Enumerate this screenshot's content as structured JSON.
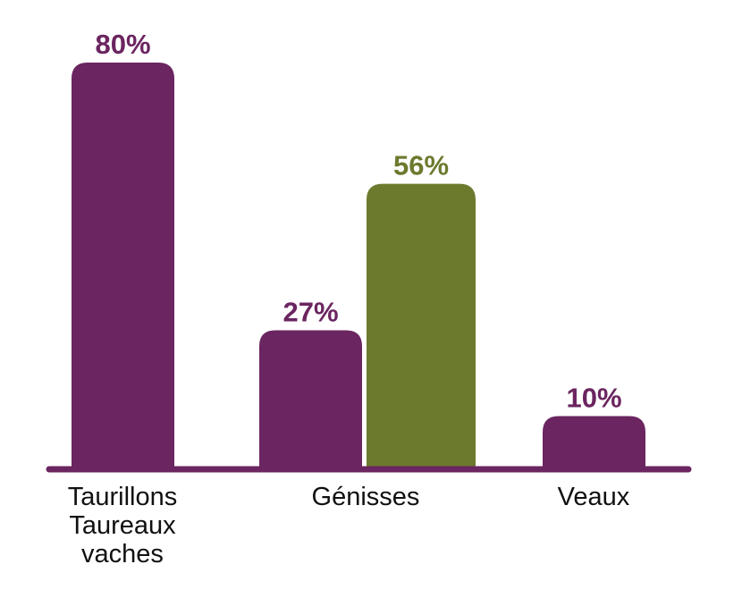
{
  "chart_data": {
    "type": "bar",
    "title": "",
    "xlabel": "",
    "ylabel": "",
    "ylim": [
      0,
      80
    ],
    "grid": false,
    "legend": "none",
    "categories": [
      {
        "lines": [
          "Taurillons",
          "Taureaux",
          "vaches"
        ]
      },
      {
        "lines": [
          "Génisses"
        ]
      },
      {
        "lines": [
          "Veaux"
        ]
      }
    ],
    "bars": [
      {
        "category": 0,
        "value": 80,
        "label": "80%",
        "color": "#6b2560"
      },
      {
        "category": 1,
        "value": 27,
        "label": "27%",
        "color": "#6b2560"
      },
      {
        "category": 1,
        "value": 56,
        "label": "56%",
        "color": "#6c7a2e"
      },
      {
        "category": 2,
        "value": 10,
        "label": "10%",
        "color": "#6b2560"
      }
    ],
    "axis_color": "#6b2560"
  }
}
